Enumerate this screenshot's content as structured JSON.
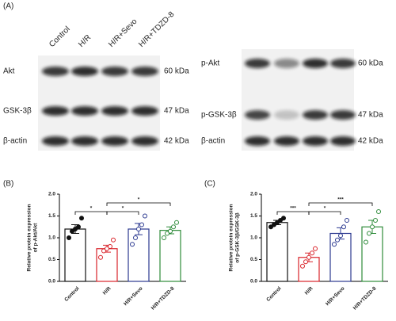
{
  "panel_a": {
    "label": "(A)",
    "columns": [
      "Control",
      "H/R",
      "H/R+Sevo",
      "H/R+TDZD-8"
    ],
    "left_rows": [
      {
        "name": "Akt",
        "size": "60 kDa"
      },
      {
        "name": "GSK-3β",
        "size": "47 kDa"
      },
      {
        "name": "β-actin",
        "size": "42 kDa"
      }
    ],
    "right_rows": [
      {
        "name": "p-Akt",
        "size": "60 kDa"
      },
      {
        "name": "p-GSK-3β",
        "size": "47 kDa"
      },
      {
        "name": "β-actin",
        "size": "42 kDa"
      }
    ]
  },
  "chart_data": [
    {
      "type": "bar",
      "panel_label": "(B)",
      "ylabel": [
        "Relative protein expression",
        "of p-Akt/Akt"
      ],
      "categories": [
        "Control",
        "H/R",
        "H/R+Sevo",
        "H/R+TDZD-8"
      ],
      "values": [
        1.2,
        0.75,
        1.2,
        1.17
      ],
      "errors": [
        0.1,
        0.08,
        0.13,
        0.08
      ],
      "points": [
        [
          1.0,
          1.15,
          1.2,
          1.25,
          1.45
        ],
        [
          0.55,
          0.7,
          0.75,
          0.8,
          0.95
        ],
        [
          0.85,
          1.0,
          1.2,
          1.3,
          1.5
        ],
        [
          1.0,
          1.1,
          1.15,
          1.25,
          1.35
        ]
      ],
      "colors": [
        "#111111",
        "#d9232a",
        "#2b3990",
        "#2e8b3a"
      ],
      "ylim": [
        0,
        2.0
      ],
      "yticks": [
        {
          "value": 0,
          "label": "0.0"
        },
        0.5,
        {
          "value": 1.0,
          "label": "1.0"
        },
        1.5,
        {
          "value": 2.0,
          "label": "2.0"
        }
      ],
      "comparisons": [
        {
          "label": "*",
          "between": [
            0,
            1
          ]
        },
        {
          "label": "*",
          "between": [
            1,
            2
          ]
        },
        {
          "label": "*",
          "between": [
            1,
            3
          ]
        }
      ]
    },
    {
      "type": "bar",
      "panel_label": "(C)",
      "ylabel": [
        "Relative protein expression",
        "of p-GSK-3β/GSK-3β"
      ],
      "categories": [
        "Control",
        "H/R",
        "H/R+Sevo",
        "H/R+TDZD-8"
      ],
      "values": [
        1.35,
        0.55,
        1.1,
        1.25
      ],
      "errors": [
        0.05,
        0.1,
        0.13,
        0.15
      ],
      "points": [
        [
          1.25,
          1.3,
          1.35,
          1.4,
          1.45
        ],
        [
          0.35,
          0.45,
          0.55,
          0.65,
          0.75
        ],
        [
          0.85,
          0.95,
          1.05,
          1.25,
          1.4
        ],
        [
          0.9,
          1.1,
          1.25,
          1.4,
          1.6
        ]
      ],
      "colors": [
        "#111111",
        "#d9232a",
        "#2b3990",
        "#2e8b3a"
      ],
      "ylim": [
        0,
        2.0
      ],
      "yticks": [
        {
          "value": 0,
          "label": "0.0"
        },
        0.5,
        {
          "value": 1.0,
          "label": "1.0"
        },
        1.5,
        {
          "value": 2.0,
          "label": "2.0"
        }
      ],
      "comparisons": [
        {
          "label": "***",
          "between": [
            0,
            1
          ]
        },
        {
          "label": "*",
          "between": [
            1,
            2
          ]
        },
        {
          "label": "***",
          "between": [
            1,
            3
          ]
        }
      ]
    }
  ]
}
